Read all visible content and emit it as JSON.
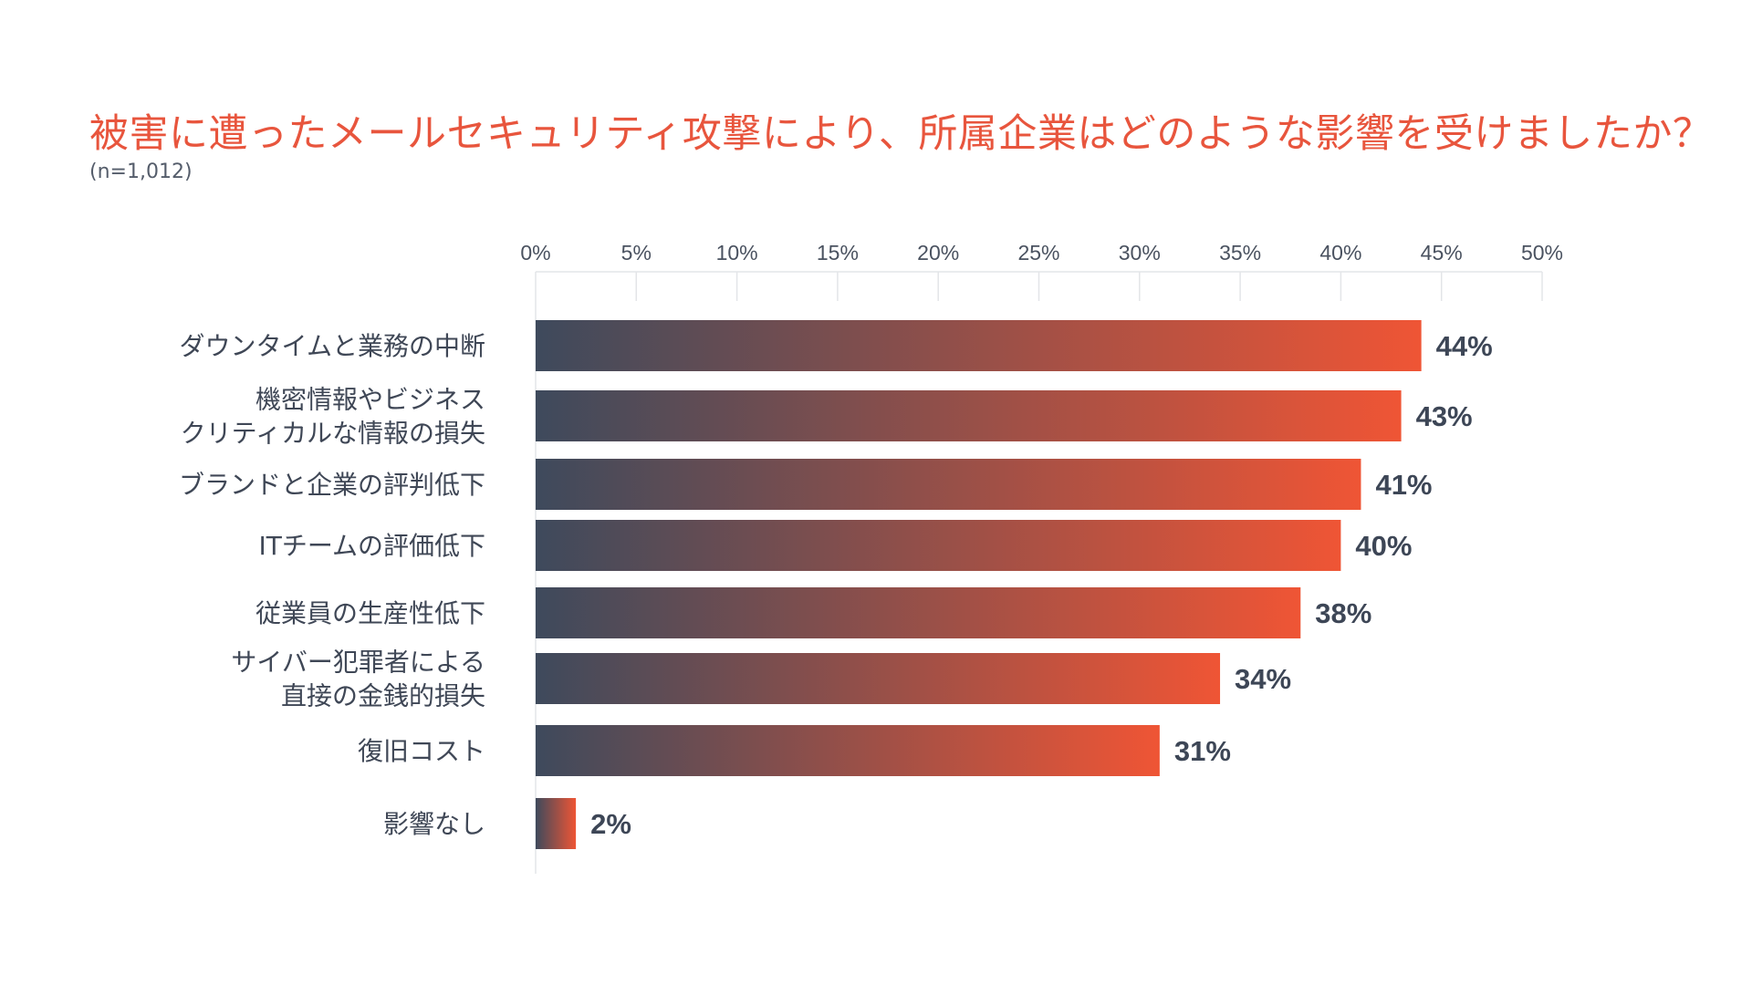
{
  "chart_data": {
    "type": "bar",
    "orientation": "horizontal",
    "title": "被害に遭ったメールセキュリティ攻撃により、所属企業はどのような影響を受けましたか？",
    "subtitle": "(n=1,012)",
    "xlim": [
      0,
      50
    ],
    "x_ticks": [
      "0%",
      "5%",
      "10%",
      "15%",
      "20%",
      "25%",
      "30%",
      "35%",
      "40%",
      "45%",
      "50%"
    ],
    "x_tick_values": [
      0,
      5,
      10,
      15,
      20,
      25,
      30,
      35,
      40,
      45,
      50
    ],
    "categories": [
      [
        "ダウンタイムと業務の中断"
      ],
      [
        "機密情報やビジネス",
        "クリティカルな情報の損失"
      ],
      [
        "ブランドと企業の評判低下"
      ],
      [
        "ITチームの評価低下"
      ],
      [
        "従業員の生産性低下"
      ],
      [
        "サイバー犯罪者による",
        "直接の金銭的損失"
      ],
      [
        "復旧コスト"
      ],
      [
        "影響なし"
      ]
    ],
    "values": [
      44,
      43,
      41,
      40,
      38,
      34,
      31,
      2
    ],
    "value_labels": [
      "44%",
      "43%",
      "41%",
      "40%",
      "38%",
      "34%",
      "31%",
      "2%"
    ],
    "legend": "none",
    "grid": true,
    "colors": {
      "bar_start": "#3e4a5c",
      "bar_end": "#ef5535",
      "title": "#e8553d",
      "text": "#3f4756",
      "grid": "#e3e5e8"
    }
  }
}
